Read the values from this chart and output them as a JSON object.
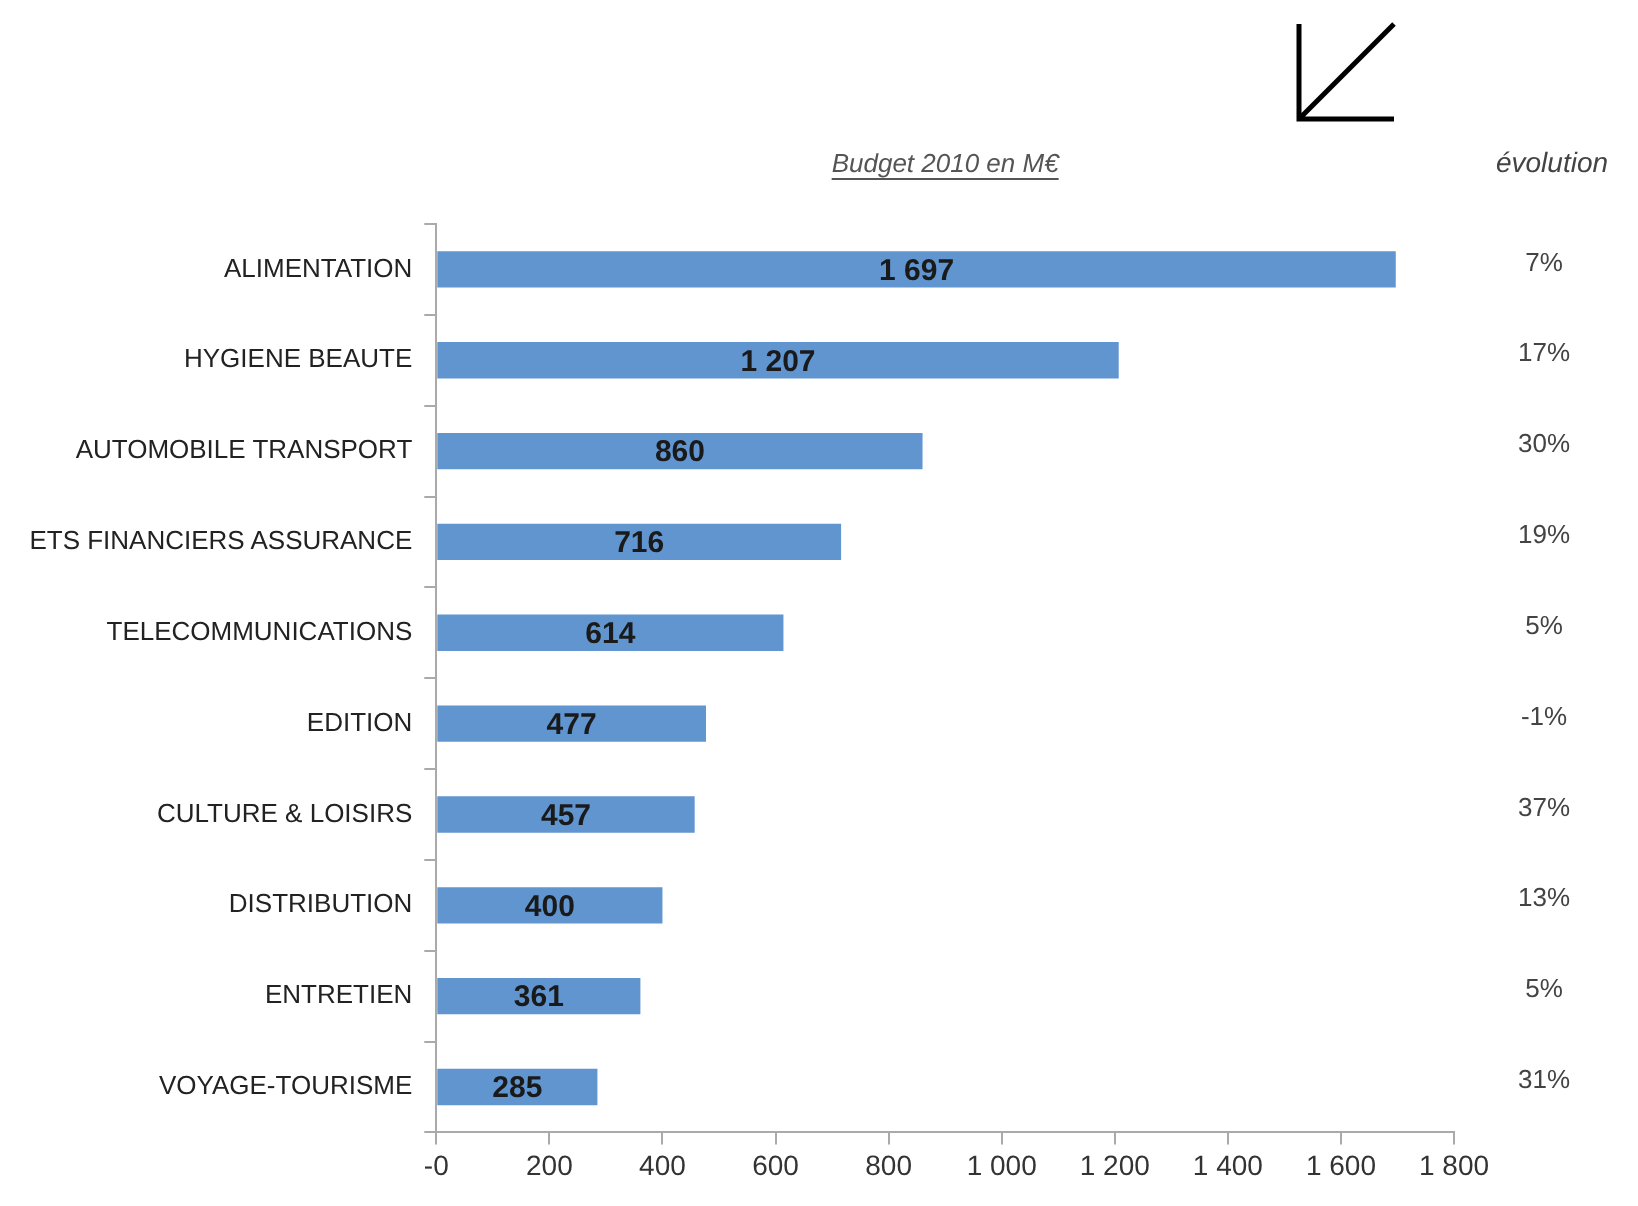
{
  "chart_data": {
    "type": "bar",
    "orientation": "horizontal",
    "title": "Budget 2010 en M€",
    "categories": [
      "ALIMENTATION",
      "HYGIENE BEAUTE",
      "AUTOMOBILE TRANSPORT",
      "ETS FINANCIERS ASSURANCE",
      "TELECOMMUNICATIONS",
      "EDITION",
      "CULTURE & LOISIRS",
      "DISTRIBUTION",
      "ENTRETIEN",
      "VOYAGE-TOURISME"
    ],
    "values": [
      1697,
      1207,
      860,
      716,
      614,
      477,
      457,
      400,
      361,
      285
    ],
    "value_labels": [
      "1 697",
      "1 207",
      "860",
      "716",
      "614",
      "477",
      "457",
      "400",
      "361",
      "285"
    ],
    "color": "#6095d0",
    "xlim": [
      0,
      1800
    ],
    "xticks": [
      {
        "value": 0,
        "label": "-0"
      },
      200,
      400,
      600,
      800,
      {
        "value": 1000,
        "label": "1 000"
      },
      {
        "value": 1200,
        "label": "1 200"
      },
      {
        "value": 1400,
        "label": "1 400"
      },
      {
        "value": 1600,
        "label": "1 600"
      },
      {
        "value": 1800,
        "label": "1 800"
      }
    ],
    "grid": false,
    "legend": false,
    "annotations": [
      "évolution",
      "7%",
      "17%",
      "30%",
      "19%",
      "5%",
      "-1%",
      "37%",
      "13%",
      "5%",
      "31%"
    ]
  }
}
